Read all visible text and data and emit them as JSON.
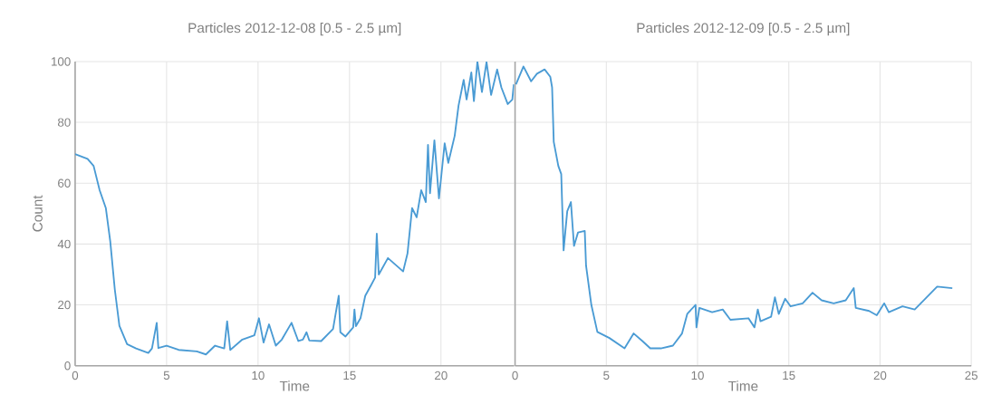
{
  "chart_data": [
    {
      "type": "line",
      "title": "Particles 2012-12-08 [0.5 - 2.5 µm]",
      "xlabel": "Time",
      "ylabel": "Count",
      "xlim": [
        0,
        24
      ],
      "xticks": [
        0,
        5,
        10,
        15,
        20
      ],
      "ylim": [
        0,
        100
      ],
      "yticks": [
        0,
        20,
        40,
        60,
        80,
        100
      ],
      "grid": true,
      "series": [
        {
          "color": "#4a9bd4",
          "x": [
            0,
            0.68,
            1.01,
            1.34,
            1.68,
            1.92,
            2.17,
            2.42,
            2.84,
            3.33,
            4.0,
            4.2,
            4.46,
            4.55,
            5.0,
            5.66,
            6.65,
            7.15,
            7.65,
            8.15,
            8.31,
            8.48,
            9.14,
            9.8,
            10.05,
            10.3,
            10.6,
            10.97,
            11.3,
            11.83,
            12.2,
            12.45,
            12.65,
            12.8,
            13.45,
            14.1,
            14.41,
            14.5,
            14.78,
            15.2,
            15.27,
            15.35,
            15.6,
            15.86,
            16.18,
            16.4,
            16.49,
            16.6,
            17.1,
            17.93,
            18.17,
            18.42,
            18.67,
            18.92,
            19.17,
            19.29,
            19.4,
            19.64,
            19.89,
            20.2,
            20.4,
            20.75,
            20.96,
            21.24,
            21.4,
            21.66,
            21.8,
            21.99,
            22.24,
            22.49,
            22.74,
            23.07,
            23.3,
            23.65,
            23.9,
            23.98
          ],
          "values": [
            69.6,
            68,
            65.7,
            57.7,
            51.8,
            40.9,
            25,
            13.1,
            7.1,
            5.7,
            4.2,
            5.7,
            14.1,
            5.8,
            6.6,
            5.2,
            4.7,
            3.7,
            6.6,
            5.7,
            14.6,
            5.2,
            8.6,
            10,
            15.6,
            7.6,
            13.6,
            6.6,
            8.6,
            14.1,
            8.1,
            8.6,
            11,
            8.3,
            8.1,
            12.1,
            23,
            11,
            9.6,
            12.6,
            18.5,
            13,
            15.6,
            23,
            26.5,
            29,
            43.4,
            30,
            35.4,
            31,
            36.9,
            51.8,
            48.8,
            57.7,
            53.8,
            72.6,
            56.7,
            74.1,
            55,
            73.1,
            66.7,
            75.6,
            85.5,
            94,
            87.5,
            96.4,
            87,
            100,
            90,
            99.9,
            89,
            97.4,
            91.5,
            86,
            87.5,
            92.5
          ]
        }
      ]
    },
    {
      "type": "line",
      "title": "Particles 2012-12-09 [0.5 - 2.5 µm]",
      "xlabel": "Time",
      "xlim": [
        0,
        25
      ],
      "xticks": [
        0,
        5,
        10,
        15,
        20,
        25
      ],
      "ylim": [
        0,
        100
      ],
      "yticks": [
        0,
        20,
        40,
        60,
        80,
        100
      ],
      "grid": true,
      "tick_labels": "x",
      "series": [
        {
          "color": "#4a9bd4",
          "x": [
            0.05,
            0.46,
            0.88,
            1.2,
            1.62,
            1.93,
            2.03,
            2.12,
            2.37,
            2.53,
            2.66,
            2.86,
            3.06,
            3.23,
            3.45,
            3.82,
            3.89,
            4.18,
            4.51,
            5.17,
            6.0,
            6.5,
            6.98,
            7.41,
            7.99,
            8.65,
            9.15,
            9.44,
            9.89,
            9.94,
            10.1,
            10.8,
            11.38,
            11.8,
            12.79,
            13.12,
            13.3,
            13.45,
            14.03,
            14.24,
            14.45,
            14.8,
            15.1,
            15.76,
            16.3,
            16.8,
            17.46,
            18.12,
            18.56,
            18.67,
            19.4,
            19.82,
            20.23,
            20.48,
            21.23,
            21.9,
            22.23,
            23.13,
            23.96
          ],
          "values": [
            92.5,
            98.4,
            93.5,
            96,
            97.4,
            95,
            91.5,
            73.6,
            65.7,
            63,
            37.9,
            50.8,
            53.8,
            39.4,
            43.8,
            44.3,
            32.9,
            20,
            11.1,
            9.1,
            5.7,
            10.6,
            8.1,
            5.7,
            5.7,
            6.6,
            10.6,
            17.1,
            20,
            12.6,
            19,
            17.6,
            18.5,
            15.1,
            15.6,
            12.6,
            18.5,
            14.6,
            16.1,
            22.5,
            17,
            22,
            19.5,
            20.5,
            24,
            21.5,
            20.5,
            21.5,
            25.5,
            19,
            18,
            16.6,
            20.5,
            17.6,
            19.5,
            18.5,
            20.5,
            26,
            25.5
          ]
        }
      ]
    }
  ]
}
